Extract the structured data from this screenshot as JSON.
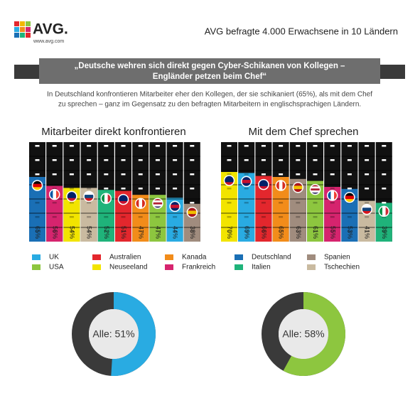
{
  "header": {
    "logo": "AVG.",
    "url": "www.avg.com",
    "tagline": "AVG befragte 4.000 Erwachsene in 10 Ländern",
    "banner": [
      "„Deutsche wehren sich direkt gegen Cyber-Schikanen von Kollegen –",
      "Engländer petzen beim Chef“"
    ],
    "intro": [
      "In Deutschland konfrontieren Mitarbeiter eher den Kollegen, der sie schikaniert (65%), als mit dem Chef",
      "zu sprechen – ganz im Gegensatz zu den befragten Mitarbeitern in englischsprachigen Ländern."
    ]
  },
  "legend": {
    "items": [
      {
        "name": "UK",
        "color": "#29abe2"
      },
      {
        "name": "USA",
        "color": "#8dc63f"
      },
      {
        "name": "Australien",
        "color": "#e3272d"
      },
      {
        "name": "Neuseeland",
        "color": "#f2e400"
      },
      {
        "name": "Kanada",
        "color": "#f28c1a"
      },
      {
        "name": "Frankreich",
        "color": "#d6246e"
      },
      {
        "name": "Deutschland",
        "color": "#1a6fb5"
      },
      {
        "name": "Italien",
        "color": "#1fb37a"
      },
      {
        "name": "Spanien",
        "color": "#a08c7e"
      },
      {
        "name": "Tschechien",
        "color": "#c9baa0"
      }
    ]
  },
  "chart_data": [
    {
      "type": "bar",
      "title": "Mitarbeiter direkt konfrontieren",
      "categories": [
        "Deutschland",
        "Frankreich",
        "Neuseeland",
        "Tschechien",
        "Italien",
        "Australien",
        "Kanada",
        "USA",
        "UK",
        "Spanien"
      ],
      "values": [
        65,
        56,
        54,
        54,
        52,
        51,
        47,
        47,
        44,
        38
      ],
      "value_labels": [
        "65%",
        "56%",
        "54%",
        "54%",
        "52%",
        "51%",
        "47%",
        "47%",
        "44%",
        "38%"
      ],
      "ylim": [
        0,
        100
      ]
    },
    {
      "type": "bar",
      "title": "Mit dem Chef sprechen",
      "categories": [
        "Neuseeland",
        "UK",
        "Australien",
        "Kanada",
        "Spanien",
        "USA",
        "Frankreich",
        "Deutschland",
        "Tschechien",
        "Italien"
      ],
      "values": [
        70,
        69,
        66,
        65,
        63,
        61,
        55,
        53,
        41,
        39
      ],
      "value_labels": [
        "70%",
        "69%",
        "66%",
        "65%",
        "63%",
        "61%",
        "55%",
        "53%",
        "41%",
        "39%"
      ],
      "ylim": [
        0,
        100
      ]
    },
    {
      "type": "donut",
      "values": [
        51
      ],
      "value_labels": [
        "Alle: 51%"
      ],
      "color": "#29abe2",
      "track_color": "#3a3a3a"
    },
    {
      "type": "donut",
      "values": [
        58
      ],
      "value_labels": [
        "Alle: 58%"
      ],
      "color": "#8dc63f",
      "track_color": "#3a3a3a"
    }
  ]
}
